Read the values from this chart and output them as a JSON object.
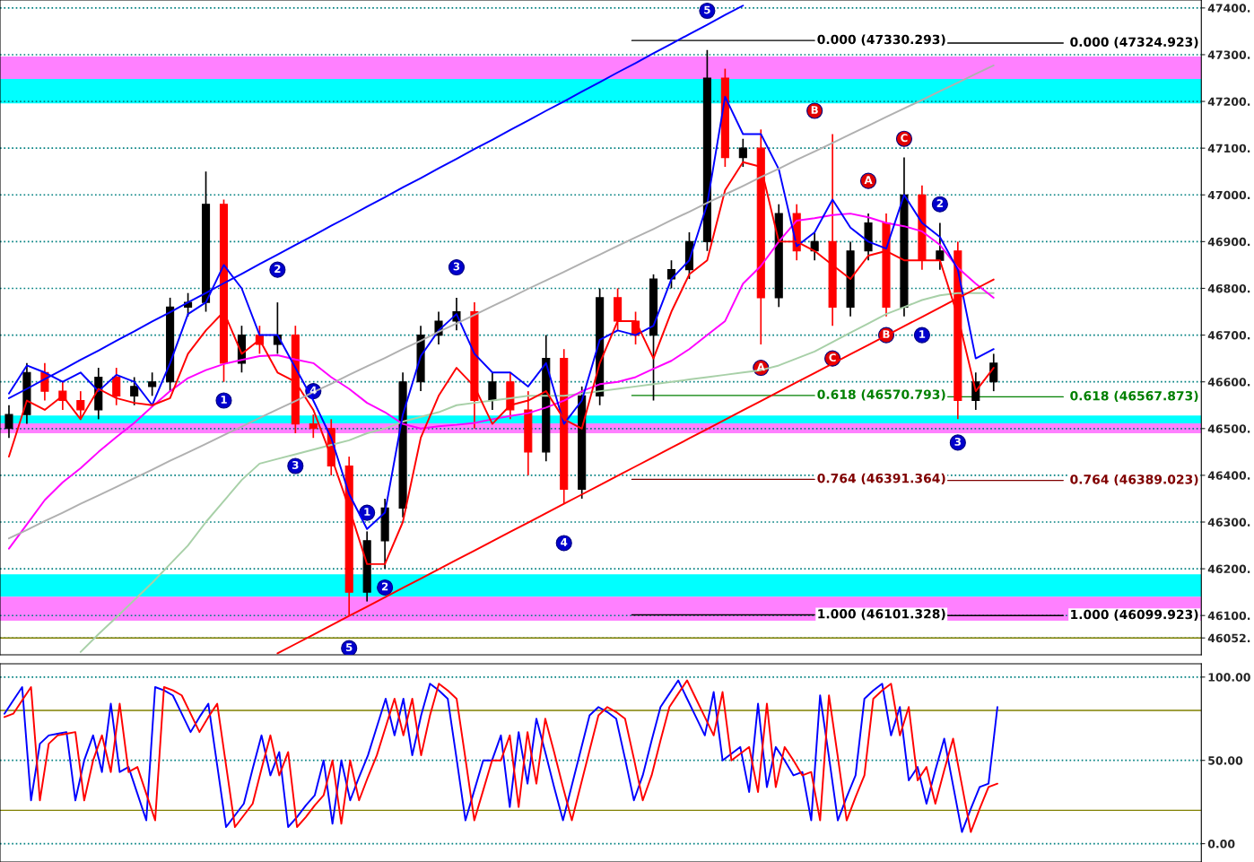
{
  "chart_data": [
    {
      "type": "candlestick",
      "tick_labels": "y",
      "grid": "y",
      "ylim": [
        46016,
        47417
      ],
      "yticks": [
        {
          "value": 46052,
          "label": "46052."
        },
        {
          "value": 46100,
          "label": "46100."
        },
        {
          "value": 46200,
          "label": "46200."
        },
        {
          "value": 46300,
          "label": "46300."
        },
        {
          "value": 46400,
          "label": "46400."
        },
        {
          "value": 46500,
          "label": "46500."
        },
        {
          "value": 46600,
          "label": "46600."
        },
        {
          "value": 46700,
          "label": "46700."
        },
        {
          "value": 46800,
          "label": "46800."
        },
        {
          "value": 46900,
          "label": "46900."
        },
        {
          "value": 47000,
          "label": "47000."
        },
        {
          "value": 47100,
          "label": "47100."
        },
        {
          "value": 47200,
          "label": "47200."
        },
        {
          "value": 47300,
          "label": "47300."
        },
        {
          "value": 47400,
          "label": "47400."
        }
      ],
      "categories": [
        null,
        null,
        null,
        null,
        null,
        null,
        null,
        null,
        null,
        null,
        null,
        null,
        null,
        null,
        null,
        null,
        null,
        null,
        null,
        null,
        null,
        null,
        null,
        null,
        null,
        null,
        null,
        null,
        null,
        null,
        null,
        null,
        null,
        null,
        null,
        null,
        null,
        null,
        null,
        null,
        null,
        null,
        null,
        null,
        null,
        null,
        null,
        null,
        null,
        null,
        null,
        null,
        null,
        null,
        null,
        null
      ],
      "ohlc": [
        [
          46500,
          46550,
          46480,
          46530
        ],
        [
          46530,
          46640,
          46510,
          46620
        ],
        [
          46620,
          46640,
          46560,
          46580
        ],
        [
          46580,
          46600,
          46540,
          46560
        ],
        [
          46560,
          46580,
          46520,
          46540
        ],
        [
          46540,
          46630,
          46520,
          46610
        ],
        [
          46610,
          46630,
          46550,
          46570
        ],
        [
          46570,
          46610,
          46550,
          46590
        ],
        [
          46590,
          46620,
          46570,
          46600
        ],
        [
          46600,
          46780,
          46580,
          46760
        ],
        [
          46760,
          46790,
          46740,
          46770
        ],
        [
          46770,
          47050,
          46750,
          46980
        ],
        [
          46980,
          46990,
          46600,
          46640
        ],
        [
          46640,
          46720,
          46620,
          46700
        ],
        [
          46700,
          46720,
          46660,
          46680
        ],
        [
          46680,
          46770,
          46660,
          46700
        ],
        [
          46700,
          46720,
          46490,
          46510
        ],
        [
          46510,
          46530,
          46480,
          46500
        ],
        [
          46500,
          46520,
          46400,
          46420
        ],
        [
          46420,
          46440,
          46100,
          46150
        ],
        [
          46150,
          46280,
          46130,
          46260
        ],
        [
          46260,
          46350,
          46200,
          46330
        ],
        [
          46330,
          46620,
          46310,
          46600
        ],
        [
          46600,
          46720,
          46580,
          46700
        ],
        [
          46700,
          46750,
          46680,
          46730
        ],
        [
          46730,
          46780,
          46710,
          46750
        ],
        [
          46750,
          46770,
          46500,
          46560
        ],
        [
          46560,
          46620,
          46540,
          46600
        ],
        [
          46600,
          46620,
          46520,
          46540
        ],
        [
          46540,
          46580,
          46400,
          46450
        ],
        [
          46450,
          46700,
          46430,
          46650
        ],
        [
          46650,
          46670,
          46340,
          46370
        ],
        [
          46370,
          46590,
          46350,
          46570
        ],
        [
          46570,
          46800,
          46550,
          46780
        ],
        [
          46780,
          46800,
          46710,
          46730
        ],
        [
          46730,
          46750,
          46680,
          46700
        ],
        [
          46700,
          46830,
          46560,
          46820
        ],
        [
          46820,
          46860,
          46800,
          46840
        ],
        [
          46840,
          46920,
          46820,
          46900
        ],
        [
          46900,
          47310,
          46880,
          47250
        ],
        [
          47250,
          47270,
          47060,
          47080
        ],
        [
          47080,
          47120,
          47060,
          47100
        ],
        [
          47100,
          47140,
          46680,
          46780
        ],
        [
          46780,
          46980,
          46760,
          46960
        ],
        [
          46960,
          46980,
          46860,
          46880
        ],
        [
          46880,
          46920,
          46860,
          46900
        ],
        [
          46900,
          47130,
          46720,
          46760
        ],
        [
          46760,
          46900,
          46740,
          46880
        ],
        [
          46880,
          46960,
          46860,
          46940
        ],
        [
          46940,
          46960,
          46740,
          46760
        ],
        [
          46760,
          47080,
          46740,
          47000
        ],
        [
          47000,
          47020,
          46840,
          46860
        ],
        [
          46860,
          46940,
          46840,
          46880
        ],
        [
          46880,
          46900,
          46520,
          46560
        ],
        [
          46560,
          46620,
          46540,
          46600
        ],
        [
          46600,
          46660,
          46580,
          46640
        ]
      ],
      "colors": [
        "#000000",
        "#000000",
        "#ff0000",
        "#ff0000",
        "#ff0000",
        "#000000",
        "#ff0000",
        "#000000",
        "#000000",
        "#000000",
        "#000000",
        "#000000",
        "#ff0000",
        "#000000",
        "#ff0000",
        "#000000",
        "#ff0000",
        "#ff0000",
        "#ff0000",
        "#ff0000",
        "#000000",
        "#000000",
        "#000000",
        "#000000",
        "#000000",
        "#000000",
        "#ff0000",
        "#000000",
        "#ff0000",
        "#ff0000",
        "#000000",
        "#ff0000",
        "#000000",
        "#000000",
        "#ff0000",
        "#ff0000",
        "#000000",
        "#000000",
        "#000000",
        "#000000",
        "#ff0000",
        "#000000",
        "#ff0000",
        "#000000",
        "#ff0000",
        "#000000",
        "#ff0000",
        "#000000",
        "#000000",
        "#ff0000",
        "#000000",
        "#ff0000",
        "#000000",
        "#ff0000",
        "#000000",
        "#000000"
      ],
      "series": [
        {
          "type": "line",
          "color": "#a8d0a8",
          "values": [
            null,
            null,
            null,
            null,
            46022,
            46060,
            46096,
            46133,
            46170,
            46210,
            46250,
            46300,
            46345,
            46390,
            46425,
            46435,
            46445,
            46455,
            46465,
            46475,
            46490,
            46500,
            46515,
            46525,
            46535,
            46550,
            46555,
            46560,
            46565,
            46570,
            46570,
            46570,
            46575,
            46580,
            46585,
            46590,
            46595,
            46600,
            46605,
            46610,
            46615,
            46620,
            46625,
            46635,
            46650,
            46665,
            46685,
            46705,
            46725,
            46745,
            46760,
            46775,
            46785,
            46790,
            46790,
            46790
          ]
        },
        {
          "type": "line",
          "color": "#ff00ff",
          "values": [
            46243,
            46295,
            46347,
            46385,
            46415,
            46450,
            46482,
            46512,
            46547,
            46580,
            46608,
            46625,
            46638,
            46647,
            46655,
            46657,
            46648,
            46640,
            46610,
            46585,
            46555,
            46535,
            46510,
            46500,
            46505,
            46508,
            46512,
            46520,
            46527,
            46533,
            46545,
            46560,
            46580,
            46595,
            46600,
            46610,
            46628,
            46645,
            46670,
            46700,
            46730,
            46810,
            46848,
            46900,
            46945,
            46950,
            46957,
            46960,
            46952,
            46940,
            46933,
            46922,
            46893,
            46844,
            46810,
            46780
          ]
        },
        {
          "type": "line",
          "color": "#0000ff",
          "values": [
            46575,
            46635,
            46620,
            46600,
            46620,
            46580,
            46615,
            46600,
            46550,
            46640,
            46745,
            46770,
            46850,
            46800,
            46700,
            46700,
            46630,
            46560,
            46480,
            46360,
            46285,
            46320,
            46530,
            46655,
            46710,
            46745,
            46660,
            46620,
            46620,
            46590,
            46640,
            46510,
            46560,
            46690,
            46710,
            46700,
            46720,
            46820,
            46860,
            46980,
            47210,
            47130,
            47130,
            47055,
            46890,
            46920,
            46990,
            46930,
            46900,
            46885,
            47000,
            46940,
            46910,
            46840,
            46650,
            46670
          ]
        },
        {
          "type": "line",
          "color": "#ff0000",
          "values": [
            46440,
            46560,
            46540,
            46570,
            46520,
            46585,
            46565,
            46555,
            46550,
            46565,
            46660,
            46710,
            46750,
            46660,
            46690,
            46620,
            46600,
            46540,
            46440,
            46330,
            46210,
            46210,
            46300,
            46480,
            46570,
            46630,
            46590,
            46510,
            46550,
            46560,
            46580,
            46520,
            46500,
            46640,
            46730,
            46730,
            46650,
            46750,
            46830,
            46860,
            47010,
            47070,
            47060,
            46900,
            46900,
            46880,
            46850,
            46820,
            46870,
            46880,
            46860,
            46860,
            46860,
            46740,
            46580,
            46630
          ]
        },
        {
          "type": "line",
          "color": "#0000ff",
          "values": [
            46565,
            46585,
            46606,
            46626,
            46647,
            46667,
            46688,
            46708,
            46729,
            46749,
            46770,
            46790,
            46811,
            46831,
            46852,
            46872,
            46893,
            46913,
            46934,
            46954,
            46975,
            46995,
            47016,
            47036,
            47057,
            47077,
            47098,
            47118,
            47139,
            47159,
            47180,
            47200,
            47221,
            47241,
            47262,
            47282,
            47303,
            47323,
            47344,
            47364,
            47385,
            47405,
            null,
            null,
            null,
            null,
            null,
            null,
            null,
            null,
            null,
            null,
            null,
            null,
            null,
            null
          ]
        },
        {
          "type": "line",
          "color": "#b0b0b0",
          "values": [
            46265,
            46283,
            46302,
            46320,
            46339,
            46357,
            46375,
            46394,
            46412,
            46431,
            46449,
            46467,
            46486,
            46504,
            46523,
            46541,
            46559,
            46578,
            46596,
            46615,
            46633,
            46651,
            46670,
            46688,
            46707,
            46725,
            46743,
            46762,
            46780,
            46799,
            46817,
            46835,
            46854,
            46872,
            46891,
            46909,
            46927,
            46946,
            46964,
            46983,
            47001,
            47019,
            47038,
            47056,
            47075,
            47093,
            47111,
            47130,
            47148,
            47167,
            47185,
            47203,
            47222,
            47240,
            47259,
            47277
          ]
        },
        {
          "type": "line",
          "color": "#ff0000",
          "values": [
            null,
            null,
            null,
            null,
            null,
            null,
            null,
            null,
            null,
            null,
            null,
            null,
            null,
            null,
            null,
            46019,
            46039,
            46059,
            46079,
            46099,
            46119,
            46139,
            46159,
            46179,
            46199,
            46219,
            46239,
            46259,
            46279,
            46299,
            46319,
            46339,
            46359,
            46379,
            46399,
            46419,
            46439,
            46459,
            46479,
            46499,
            46519,
            46539,
            46559,
            46579,
            46599,
            46619,
            46639,
            46659,
            46679,
            46699,
            46719,
            46739,
            46759,
            46779,
            46799,
            46819
          ]
        },
        {
          "type": "scatter",
          "color": "#0000cc",
          "marker": "circle",
          "values": [
            null,
            null,
            null,
            null,
            null,
            null,
            null,
            null,
            null,
            null,
            null,
            null,
            46560,
            null,
            null,
            46840,
            46420,
            46580,
            null,
            46030,
            46320,
            46160,
            null,
            null,
            null,
            46845,
            null,
            null,
            null,
            null,
            null,
            46255,
            null,
            null,
            null,
            null,
            null,
            null,
            null,
            47394,
            null,
            null,
            null,
            null,
            null,
            null,
            null,
            null,
            null,
            null,
            null,
            46700,
            46980,
            46470,
            null,
            null
          ]
        },
        {
          "type": "scatter",
          "color": "#e00000",
          "marker": "circle",
          "values": [
            null,
            null,
            null,
            null,
            null,
            null,
            null,
            null,
            null,
            null,
            null,
            null,
            null,
            null,
            null,
            null,
            null,
            null,
            null,
            null,
            null,
            null,
            null,
            null,
            null,
            null,
            null,
            null,
            null,
            null,
            null,
            null,
            null,
            null,
            null,
            null,
            null,
            null,
            null,
            null,
            null,
            null,
            46630,
            null,
            null,
            47180,
            46650,
            null,
            47030,
            46700,
            47120,
            null,
            null,
            null,
            null,
            null
          ]
        }
      ],
      "annotations": [
        {
          "text": "1",
          "y": 46560
        },
        {
          "text": "2",
          "y": 46840
        },
        {
          "text": "3",
          "y": 46420
        },
        {
          "text": "4",
          "y": 46580
        },
        {
          "text": "5",
          "y": 46030
        },
        {
          "text": "1",
          "y": 46320
        },
        {
          "text": "2",
          "y": 46160
        },
        {
          "text": "3",
          "y": 46845
        },
        {
          "text": "4",
          "y": 46255
        },
        {
          "text": "5",
          "y": 47394
        },
        {
          "text": "1",
          "y": 46700
        },
        {
          "text": "2",
          "y": 46980
        },
        {
          "text": "3",
          "y": 46470
        },
        {
          "text": "A",
          "y": 46630
        },
        {
          "text": "B",
          "y": 47180
        },
        {
          "text": "C",
          "y": 46650
        },
        {
          "text": "A",
          "y": 47030
        },
        {
          "text": "B",
          "y": 46700
        },
        {
          "text": "C",
          "y": 47120
        }
      ],
      "bands": [
        {
          "axis": "y",
          "from": 47248,
          "to": 47296,
          "color": "#ff80ff"
        },
        {
          "axis": "y",
          "from": 47196,
          "to": 47248,
          "color": "#00ffff"
        },
        {
          "axis": "y",
          "from": 46511,
          "to": 46528,
          "color": "#00ffff"
        },
        {
          "axis": "y",
          "from": 46490,
          "to": 46511,
          "color": "#ff80ff"
        },
        {
          "axis": "y",
          "from": 46140,
          "to": 46188,
          "color": "#00ffff"
        },
        {
          "axis": "y",
          "from": 46089,
          "to": 46140,
          "color": "#ff80ff"
        }
      ],
      "ref_lines": [
        {
          "axis": "y",
          "value": 47330.293,
          "label": "0.000 (47330.293)",
          "color": "#000000"
        },
        {
          "axis": "y",
          "value": 46570.793,
          "label": "0.618 (46570.793)",
          "color": "#008000"
        },
        {
          "axis": "y",
          "value": 46391.364,
          "label": "0.764 (46391.364)",
          "color": "#800000"
        },
        {
          "axis": "y",
          "value": 46101.328,
          "label": "1.000 (46101.328)",
          "color": "#000000"
        },
        {
          "axis": "y",
          "value": 47324.923,
          "label": "0.000 (47324.923)",
          "color": "#000000"
        },
        {
          "axis": "y",
          "value": 46567.873,
          "label": "0.618 (46567.873)",
          "color": "#008000"
        },
        {
          "axis": "y",
          "value": 46389.023,
          "label": "0.764 (46389.023)",
          "color": "#800000"
        },
        {
          "axis": "y",
          "value": 46099.923,
          "label": "1.000 (46099.923)",
          "color": "#000000"
        },
        {
          "axis": "y",
          "value": 46052,
          "color": "#808000"
        }
      ]
    },
    {
      "type": "line",
      "tick_labels": "y",
      "grid": "y",
      "ylim": [
        -11,
        108
      ],
      "yticks": [
        {
          "value": 100,
          "label": "100.00"
        },
        {
          "value": 50,
          "label": "50.00"
        },
        {
          "value": 0,
          "label": "0.00"
        }
      ],
      "categories": [
        null,
        null,
        null,
        null,
        null,
        null,
        null,
        null,
        null,
        null,
        null,
        null,
        null,
        null,
        null,
        null,
        null,
        null,
        null,
        null,
        null,
        null,
        null,
        null,
        null,
        null,
        null,
        null,
        null,
        null,
        null,
        null,
        null,
        null,
        null,
        null,
        null,
        null,
        null,
        null,
        null,
        null,
        null,
        null,
        null,
        null,
        null,
        null,
        null,
        null,
        null,
        null,
        null,
        null,
        null,
        null,
        null,
        null,
        null,
        null,
        null,
        null,
        null,
        null,
        null,
        null,
        null,
        null,
        null,
        null,
        null,
        null,
        null,
        null,
        null,
        null,
        null,
        null,
        null,
        null,
        null,
        null,
        null,
        null,
        null,
        null,
        null,
        null,
        null,
        null,
        null,
        null,
        null,
        null,
        null,
        null,
        null,
        null,
        null,
        null,
        null,
        null,
        null,
        null,
        null,
        null,
        null,
        null,
        null,
        null,
        null,
        null,
        null
      ],
      "ref_lines": [
        {
          "axis": "y",
          "value": 80,
          "color": "#808000"
        },
        {
          "axis": "y",
          "value": 20,
          "color": "#808000"
        }
      ],
      "series": [
        {
          "color": "#0000ff",
          "values": [
            78,
            86,
            94,
            26,
            60,
            65,
            66,
            67,
            26,
            50,
            65,
            43,
            84,
            43,
            46,
            30,
            14,
            94,
            92,
            89,
            78,
            67,
            76,
            84,
            47,
            10,
            17,
            24,
            45,
            65,
            41,
            55,
            10,
            16,
            23,
            29,
            50,
            12,
            50,
            26,
            40,
            53,
            70,
            87,
            65,
            87,
            53,
            77,
            96,
            92,
            87,
            51,
            14,
            32,
            50,
            50,
            65,
            22,
            67,
            36,
            75,
            55,
            34,
            14,
            35,
            56,
            77,
            82,
            79,
            75,
            51,
            26,
            41,
            62,
            82,
            90,
            98,
            87,
            76,
            65,
            91,
            50,
            54,
            58,
            31,
            84,
            34,
            58,
            50,
            41,
            43,
            14,
            89,
            52,
            14,
            28,
            41,
            87,
            92,
            96,
            65,
            82,
            38,
            46,
            24,
            44,
            63,
            35,
            7,
            21,
            34,
            36,
            82
          ]
        },
        {
          "color": "#ff0000",
          "values": [
            76,
            78,
            86,
            94,
            26,
            60,
            65,
            66,
            67,
            26,
            50,
            65,
            43,
            84,
            43,
            46,
            30,
            14,
            94,
            92,
            89,
            78,
            67,
            76,
            84,
            47,
            10,
            17,
            24,
            45,
            65,
            41,
            55,
            10,
            16,
            23,
            29,
            50,
            12,
            50,
            26,
            40,
            53,
            70,
            87,
            65,
            87,
            53,
            77,
            96,
            92,
            87,
            51,
            14,
            32,
            50,
            50,
            65,
            22,
            67,
            36,
            75,
            55,
            34,
            14,
            35,
            56,
            77,
            82,
            79,
            75,
            51,
            26,
            41,
            62,
            82,
            90,
            98,
            87,
            76,
            65,
            91,
            50,
            54,
            58,
            31,
            84,
            34,
            58,
            50,
            41,
            43,
            14,
            89,
            52,
            14,
            28,
            41,
            87,
            92,
            96,
            65,
            82,
            38,
            46,
            24,
            44,
            63,
            35,
            7,
            21,
            34,
            36
          ]
        }
      ]
    }
  ]
}
